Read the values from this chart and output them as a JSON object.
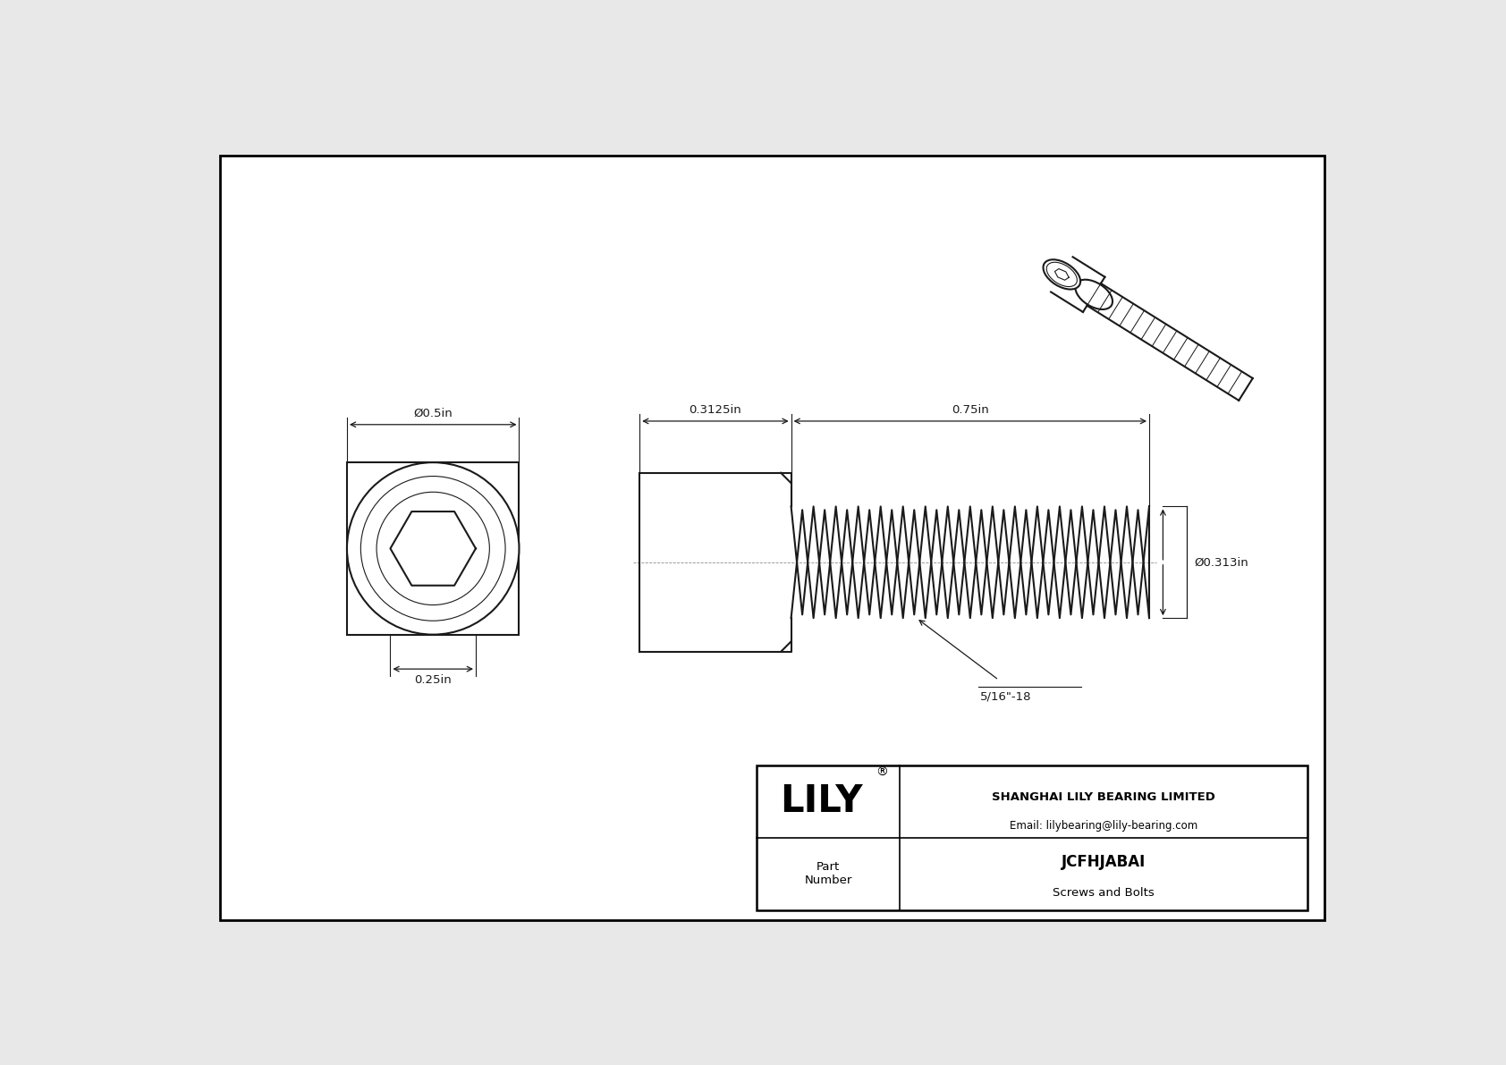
{
  "bg_color": "#e8e8e8",
  "drawing_bg": "#ffffff",
  "line_color": "#1a1a1a",
  "dim_color": "#1a1a1a",
  "title": "JCFHJABAI",
  "subtitle": "Screws and Bolts",
  "company": "SHANGHAI LILY BEARING LIMITED",
  "email": "Email: lilybearing@lily-bearing.com",
  "part_label": "Part\nNumber",
  "lily_text": "LILY",
  "dim_head_width": "0.3125in",
  "dim_thread_length": "0.75in",
  "dim_thread_dia": "Ø0.313in",
  "dim_head_dia": "Ø0.5in",
  "dim_hex_size": "0.25in",
  "thread_label": "5/16\"-18",
  "border_color": "#000000"
}
